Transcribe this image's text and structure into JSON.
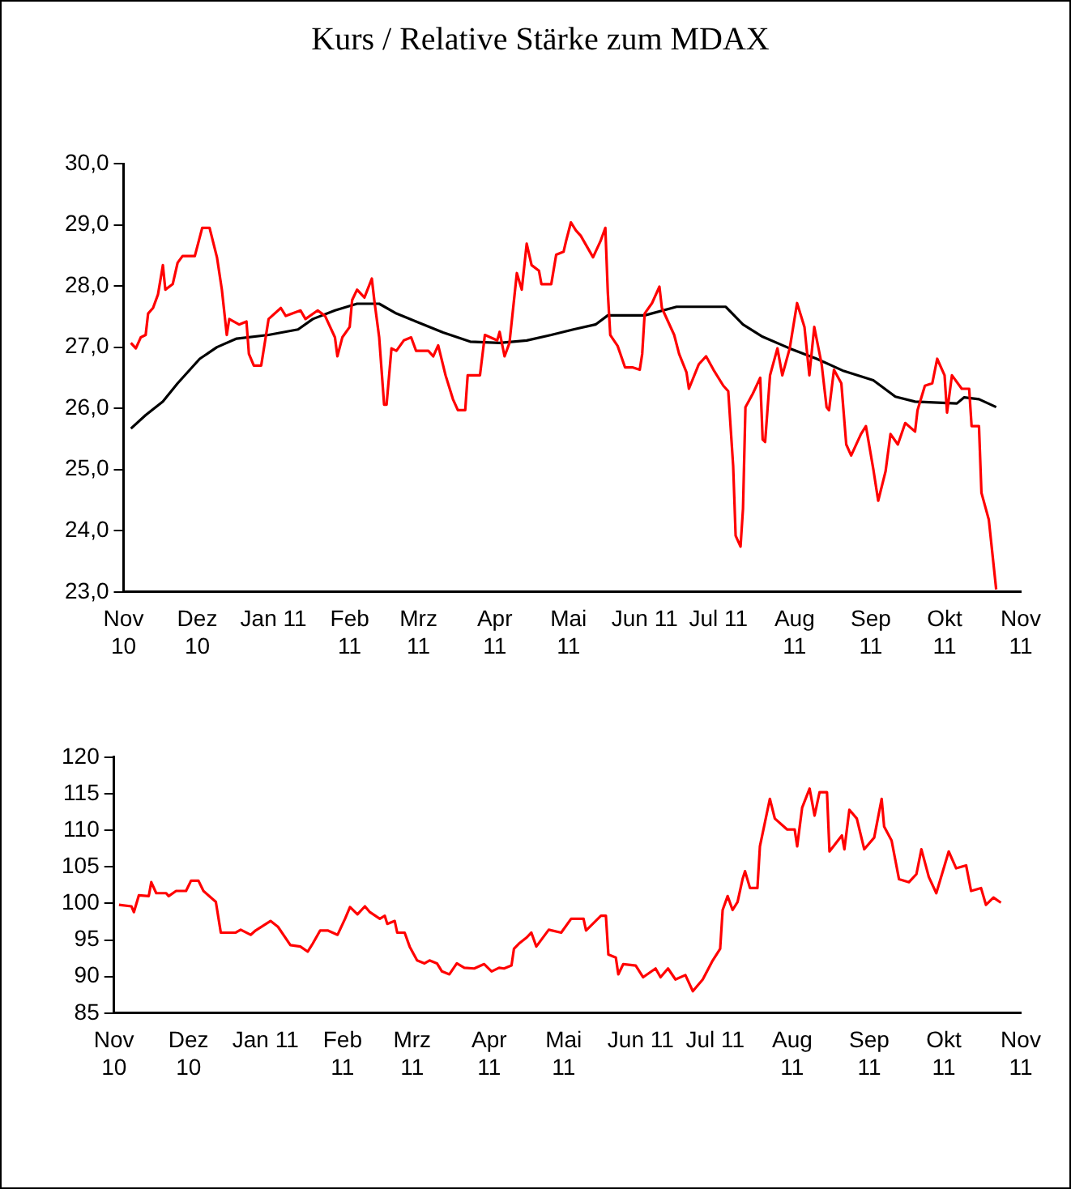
{
  "chart_data": [
    {
      "type": "line",
      "title": "Kurs / Relative Stärke zum MDAX",
      "marker": "none",
      "line_style": "solid",
      "xlim": [
        "2010-11",
        "2011-11"
      ],
      "xticks": [
        {
          "value": "2010-11",
          "label": "Nov\n10"
        },
        {
          "value": "2010-12",
          "label": "Dez\n10"
        },
        {
          "value": "2011-01",
          "label": "Jan 11"
        },
        {
          "value": "2011-02",
          "label": "Feb\n11"
        },
        {
          "value": "2011-03",
          "label": "Mrz\n11"
        },
        {
          "value": "2011-04",
          "label": "Apr\n11"
        },
        {
          "value": "2011-05",
          "label": "Mai\n11"
        },
        {
          "value": "2011-06",
          "label": "Jun 11"
        },
        {
          "value": "2011-07",
          "label": "Jul 11"
        },
        {
          "value": "2011-08",
          "label": "Aug\n11"
        },
        {
          "value": "2011-09",
          "label": "Sep\n11"
        },
        {
          "value": "2011-10",
          "label": "Okt\n11"
        },
        {
          "value": "2011-11",
          "label": "Nov\n11"
        }
      ],
      "ylim": [
        23,
        30
      ],
      "yticks": [
        {
          "value": 23,
          "label": "23,0"
        },
        {
          "value": 24,
          "label": "24,0"
        },
        {
          "value": 25,
          "label": "25,0"
        },
        {
          "value": 26,
          "label": "26,0"
        },
        {
          "value": 27,
          "label": "27,0"
        },
        {
          "value": 28,
          "label": "28,0"
        },
        {
          "value": 29,
          "label": "29,0"
        },
        {
          "value": 30,
          "label": "30,0"
        }
      ],
      "series": [
        {
          "color": "#ff0000",
          "x": [
            "2010-11-04",
            "2010-11-06",
            "2010-11-08",
            "2010-11-10",
            "2010-11-11",
            "2010-11-13",
            "2010-11-15",
            "2010-11-17",
            "2010-11-18",
            "2010-11-21",
            "2010-11-23",
            "2010-11-25",
            "2010-11-30",
            "2010-12-03",
            "2010-12-06",
            "2010-12-09",
            "2010-12-11",
            "2010-12-13",
            "2010-12-14",
            "2010-12-18",
            "2010-12-21",
            "2010-12-22",
            "2010-12-24",
            "2010-12-27",
            "2010-12-30",
            "2011-01-04",
            "2011-01-06",
            "2011-01-12",
            "2011-01-14",
            "2011-01-19",
            "2011-01-22",
            "2011-01-26",
            "2011-01-27",
            "2011-01-29",
            "2011-02-01",
            "2011-02-02",
            "2011-02-04",
            "2011-02-07",
            "2011-02-10",
            "2011-02-11",
            "2011-02-13",
            "2011-02-15",
            "2011-02-16",
            "2011-02-18",
            "2011-02-20",
            "2011-02-23",
            "2011-02-26",
            "2011-02-28",
            "2011-03-05",
            "2011-03-07",
            "2011-03-09",
            "2011-03-12",
            "2011-03-15",
            "2011-03-17",
            "2011-03-20",
            "2011-03-21",
            "2011-03-26",
            "2011-03-28",
            "2011-04-02",
            "2011-04-03",
            "2011-04-05",
            "2011-04-07",
            "2011-04-10",
            "2011-04-12",
            "2011-04-14",
            "2011-04-16",
            "2011-04-19",
            "2011-04-20",
            "2011-04-24",
            "2011-04-26",
            "2011-04-29",
            "2011-04-30",
            "2011-05-02",
            "2011-05-04",
            "2011-05-06",
            "2011-05-11",
            "2011-05-14",
            "2011-05-16",
            "2011-05-17",
            "2011-05-18",
            "2011-05-21",
            "2011-05-24",
            "2011-05-27",
            "2011-05-30",
            "2011-05-31",
            "2011-06-01",
            "2011-06-04",
            "2011-06-07",
            "2011-06-08",
            "2011-06-13",
            "2011-06-15",
            "2011-06-18",
            "2011-06-19",
            "2011-06-23",
            "2011-06-26",
            "2011-06-29",
            "2011-07-03",
            "2011-07-05",
            "2011-07-07",
            "2011-07-08",
            "2011-07-10",
            "2011-07-11",
            "2011-07-12",
            "2011-07-15",
            "2011-07-18",
            "2011-07-19",
            "2011-07-20",
            "2011-07-22",
            "2011-07-25",
            "2011-07-27",
            "2011-07-30",
            "2011-08-02",
            "2011-08-05",
            "2011-08-07",
            "2011-08-09",
            "2011-08-12",
            "2011-08-14",
            "2011-08-15",
            "2011-08-17",
            "2011-08-20",
            "2011-08-22",
            "2011-08-24",
            "2011-08-28",
            "2011-08-30",
            "2011-09-02",
            "2011-09-04",
            "2011-09-07",
            "2011-09-09",
            "2011-09-12",
            "2011-09-15",
            "2011-09-19",
            "2011-09-20",
            "2011-09-23",
            "2011-09-26",
            "2011-09-28",
            "2011-10-01",
            "2011-10-02",
            "2011-10-04",
            "2011-10-08",
            "2011-10-11",
            "2011-10-12",
            "2011-10-15",
            "2011-10-16",
            "2011-10-19",
            "2011-10-22"
          ],
          "values": [
            27.07,
            26.98,
            27.16,
            27.2,
            27.55,
            27.64,
            27.86,
            28.34,
            27.94,
            28.03,
            28.38,
            28.49,
            28.49,
            28.95,
            28.95,
            28.47,
            27.94,
            27.2,
            27.46,
            27.37,
            27.42,
            26.89,
            26.7,
            26.7,
            27.46,
            27.64,
            27.51,
            27.6,
            27.46,
            27.6,
            27.51,
            27.16,
            26.85,
            27.16,
            27.33,
            27.77,
            27.94,
            27.81,
            28.12,
            27.77,
            27.16,
            26.06,
            26.06,
            26.98,
            26.94,
            27.11,
            27.16,
            26.94,
            26.94,
            26.85,
            27.03,
            26.54,
            26.15,
            25.97,
            25.97,
            26.54,
            26.54,
            27.2,
            27.11,
            27.25,
            26.85,
            27.07,
            28.21,
            27.94,
            28.69,
            28.34,
            28.25,
            28.03,
            28.03,
            28.51,
            28.56,
            28.73,
            29.04,
            28.91,
            28.82,
            28.47,
            28.73,
            28.95,
            27.9,
            27.2,
            27.02,
            26.67,
            26.67,
            26.63,
            26.89,
            27.55,
            27.72,
            27.99,
            27.64,
            27.2,
            26.89,
            26.59,
            26.32,
            26.72,
            26.85,
            26.63,
            26.37,
            26.28,
            25.06,
            23.92,
            23.74,
            24.36,
            26.02,
            26.24,
            26.5,
            25.49,
            25.45,
            26.54,
            26.98,
            26.54,
            26.98,
            27.72,
            27.33,
            26.54,
            27.33,
            26.72,
            26.02,
            25.97,
            26.63,
            26.41,
            25.41,
            25.23,
            25.58,
            25.71,
            25.01,
            24.49,
            24.97,
            25.58,
            25.41,
            25.76,
            25.62,
            25.97,
            26.37,
            26.41,
            26.81,
            26.54,
            25.93,
            26.54,
            26.32,
            26.32,
            25.71,
            25.71,
            24.62,
            24.18,
            23.04
          ]
        },
        {
          "color": "#000000",
          "x": [
            "2010-11-04",
            "2010-11-10",
            "2010-11-17",
            "2010-11-23",
            "2010-12-02",
            "2010-12-09",
            "2010-12-17",
            "2010-12-30",
            "2011-01-11",
            "2011-01-17",
            "2011-01-26",
            "2011-02-04",
            "2011-02-13",
            "2011-02-20",
            "2011-02-28",
            "2011-03-11",
            "2011-03-22",
            "2011-04-03",
            "2011-04-14",
            "2011-04-24",
            "2011-05-03",
            "2011-05-12",
            "2011-05-17",
            "2011-06-01",
            "2011-06-14",
            "2011-07-04",
            "2011-07-11",
            "2011-07-19",
            "2011-07-30",
            "2011-08-10",
            "2011-08-21",
            "2011-09-02",
            "2011-09-11",
            "2011-09-19",
            "2011-10-06",
            "2011-10-09",
            "2011-10-15",
            "2011-10-22"
          ],
          "values": [
            25.67,
            25.89,
            26.11,
            26.41,
            26.81,
            27.0,
            27.14,
            27.2,
            27.29,
            27.46,
            27.6,
            27.71,
            27.71,
            27.55,
            27.42,
            27.24,
            27.09,
            27.07,
            27.11,
            27.2,
            27.29,
            27.37,
            27.52,
            27.52,
            27.66,
            27.66,
            27.37,
            27.17,
            26.98,
            26.81,
            26.61,
            26.46,
            26.19,
            26.11,
            26.08,
            26.18,
            26.15,
            26.02
          ]
        }
      ]
    },
    {
      "type": "line",
      "marker": "none",
      "line_style": "solid",
      "xlim": [
        "2010-11",
        "2011-11"
      ],
      "xticks": [
        {
          "value": "2010-11",
          "label": "Nov\n10"
        },
        {
          "value": "2010-12",
          "label": "Dez\n10"
        },
        {
          "value": "2011-01",
          "label": "Jan 11"
        },
        {
          "value": "2011-02",
          "label": "Feb\n11"
        },
        {
          "value": "2011-03",
          "label": "Mrz\n11"
        },
        {
          "value": "2011-04",
          "label": "Apr\n11"
        },
        {
          "value": "2011-05",
          "label": "Mai\n11"
        },
        {
          "value": "2011-06",
          "label": "Jun 11"
        },
        {
          "value": "2011-07",
          "label": "Jul 11"
        },
        {
          "value": "2011-08",
          "label": "Aug\n11"
        },
        {
          "value": "2011-09",
          "label": "Sep\n11"
        },
        {
          "value": "2011-10",
          "label": "Okt\n11"
        },
        {
          "value": "2011-11",
          "label": "Nov\n11"
        }
      ],
      "ylim": [
        85,
        120
      ],
      "yticks": [
        85,
        90,
        95,
        100,
        105,
        110,
        115,
        120
      ],
      "series": [
        {
          "color": "#ff0000",
          "x": [
            "2010-11-03",
            "2010-11-08",
            "2010-11-09",
            "2010-11-11",
            "2010-11-15",
            "2010-11-16",
            "2010-11-18",
            "2010-11-22",
            "2010-11-23",
            "2010-11-26",
            "2010-11-30",
            "2010-12-02",
            "2010-12-05",
            "2010-12-07",
            "2010-12-12",
            "2010-12-14",
            "2010-12-20",
            "2010-12-22",
            "2010-12-26",
            "2010-12-28",
            "2011-01-03",
            "2011-01-06",
            "2011-01-11",
            "2011-01-15",
            "2011-01-18",
            "2011-01-20",
            "2011-01-23",
            "2011-01-26",
            "2011-01-30",
            "2011-02-02",
            "2011-02-04",
            "2011-02-07",
            "2011-02-10",
            "2011-02-12",
            "2011-02-16",
            "2011-02-18",
            "2011-02-19",
            "2011-02-22",
            "2011-02-23",
            "2011-02-26",
            "2011-02-28",
            "2011-03-03",
            "2011-03-06",
            "2011-03-08",
            "2011-03-11",
            "2011-03-13",
            "2011-03-16",
            "2011-03-19",
            "2011-03-22",
            "2011-03-26",
            "2011-03-30",
            "2011-04-02",
            "2011-04-05",
            "2011-04-07",
            "2011-04-10",
            "2011-04-11",
            "2011-04-13",
            "2011-04-16",
            "2011-04-18",
            "2011-04-20",
            "2011-04-25",
            "2011-04-30",
            "2011-05-04",
            "2011-05-09",
            "2011-05-10",
            "2011-05-16",
            "2011-05-18",
            "2011-05-19",
            "2011-05-22",
            "2011-05-23",
            "2011-05-25",
            "2011-05-30",
            "2011-06-02",
            "2011-06-07",
            "2011-06-09",
            "2011-06-12",
            "2011-06-15",
            "2011-06-19",
            "2011-06-22",
            "2011-06-26",
            "2011-06-30",
            "2011-07-03",
            "2011-07-04",
            "2011-07-06",
            "2011-07-08",
            "2011-07-10",
            "2011-07-12",
            "2011-07-13",
            "2011-07-15",
            "2011-07-18",
            "2011-07-19",
            "2011-07-23",
            "2011-07-25",
            "2011-07-30",
            "2011-08-02",
            "2011-08-03",
            "2011-08-05",
            "2011-08-08",
            "2011-08-10",
            "2011-08-12",
            "2011-08-15",
            "2011-08-16",
            "2011-08-21",
            "2011-08-22",
            "2011-08-24",
            "2011-08-27",
            "2011-08-30",
            "2011-09-03",
            "2011-09-06",
            "2011-09-07",
            "2011-09-10",
            "2011-09-13",
            "2011-09-17",
            "2011-09-20",
            "2011-09-22",
            "2011-09-25",
            "2011-09-28",
            "2011-10-03",
            "2011-10-06",
            "2011-10-10",
            "2011-10-12",
            "2011-10-16",
            "2011-10-18",
            "2011-10-21",
            "2011-10-24"
          ],
          "values": [
            99.8,
            99.6,
            98.8,
            101.1,
            101.0,
            102.9,
            101.4,
            101.4,
            101.0,
            101.7,
            101.7,
            103.1,
            103.1,
            101.7,
            100.2,
            96.0,
            96.0,
            96.4,
            95.7,
            96.3,
            97.6,
            96.8,
            94.3,
            94.1,
            93.4,
            94.5,
            96.3,
            96.3,
            95.7,
            97.9,
            99.5,
            98.5,
            99.6,
            98.8,
            97.9,
            98.3,
            97.2,
            97.6,
            96.0,
            96.0,
            94.1,
            92.2,
            91.8,
            92.2,
            91.8,
            90.7,
            90.3,
            91.8,
            91.2,
            91.1,
            91.7,
            90.7,
            91.2,
            91.1,
            91.5,
            93.8,
            94.5,
            95.3,
            96.0,
            94.1,
            96.4,
            96.0,
            97.9,
            97.9,
            96.3,
            98.3,
            98.3,
            93.0,
            92.6,
            90.3,
            91.7,
            91.5,
            89.9,
            91.1,
            89.9,
            91.1,
            89.6,
            90.2,
            88.0,
            89.6,
            92.2,
            93.8,
            99.1,
            101.0,
            99.1,
            100.2,
            103.3,
            104.4,
            102.1,
            102.1,
            107.8,
            114.3,
            111.6,
            110.1,
            110.1,
            107.8,
            113.1,
            115.7,
            112.0,
            115.2,
            115.2,
            107.1,
            109.3,
            107.4,
            112.8,
            111.6,
            107.4,
            109.0,
            114.3,
            110.5,
            108.6,
            103.3,
            102.9,
            104.0,
            107.4,
            103.6,
            101.4,
            107.1,
            104.8,
            105.2,
            101.7,
            102.1,
            99.8,
            100.8,
            100.1
          ]
        }
      ]
    }
  ]
}
